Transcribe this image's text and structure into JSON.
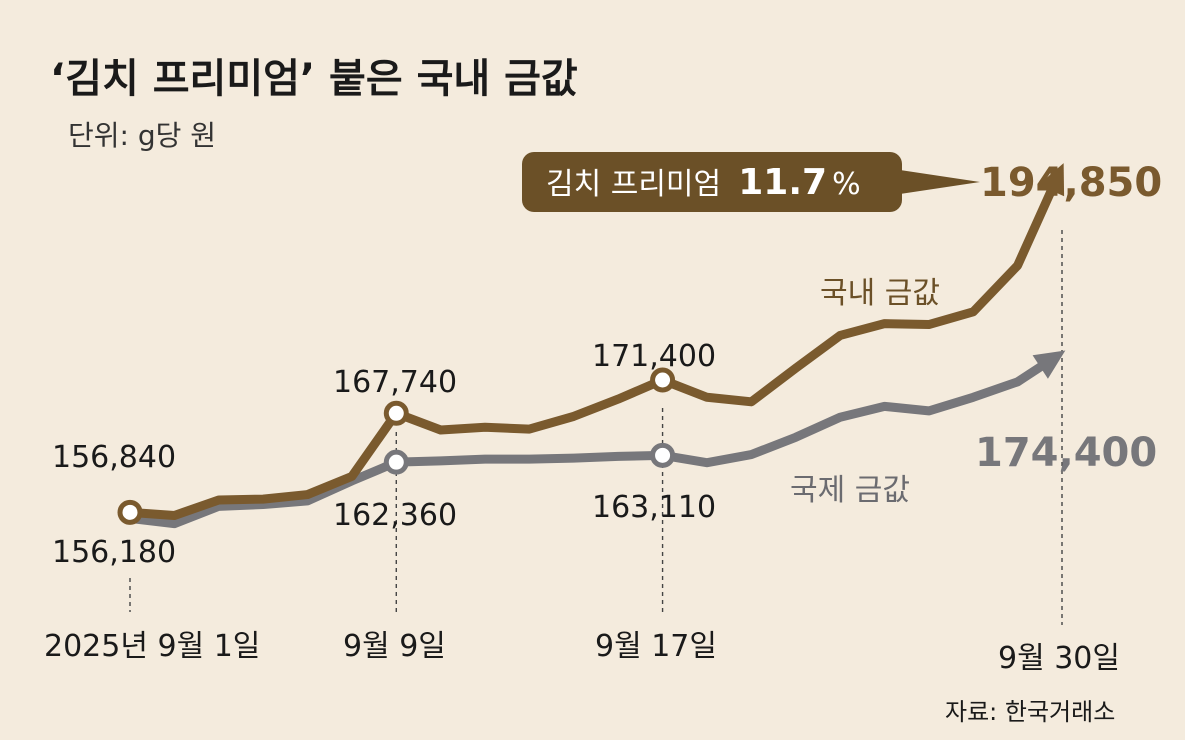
{
  "title": "‘김치 프리미엄’ 붙은 국내 금값",
  "unit": "단위: g당 원",
  "source": "자료: 한국거래소",
  "premium_badge": {
    "label": "김치 프리미엄",
    "value": "11.7",
    "suffix": "%"
  },
  "colors": {
    "domestic": "#7a5a2e",
    "international": "#77777b",
    "badge": "#6b5027",
    "background": "#f4ebdd"
  },
  "chart_data": {
    "type": "line",
    "title": "‘김치 프리미엄’ 붙은 국내 금값",
    "x": [
      "2025-09-01",
      "2025-09-02",
      "2025-09-03",
      "2025-09-04",
      "2025-09-05",
      "2025-09-08",
      "2025-09-09",
      "2025-09-10",
      "2025-09-11",
      "2025-09-12",
      "2025-09-15",
      "2025-09-16",
      "2025-09-17",
      "2025-09-18",
      "2025-09-19",
      "2025-09-22",
      "2025-09-23",
      "2025-09-24",
      "2025-09-25",
      "2025-09-26",
      "2025-09-29",
      "2025-09-30"
    ],
    "series": [
      {
        "name": "국내 금값",
        "values": [
          156840,
          156500,
          158200,
          158300,
          158800,
          160800,
          167740,
          165900,
          166200,
          166000,
          167400,
          169300,
          171400,
          169500,
          169000,
          172700,
          176300,
          177600,
          177500,
          178900,
          184000,
          194850
        ]
      },
      {
        "name": "국제 금값",
        "values": [
          156180,
          155600,
          157500,
          157700,
          158100,
          160300,
          162360,
          162500,
          162700,
          162700,
          162800,
          163000,
          163110,
          162300,
          163200,
          165100,
          167300,
          168500,
          168000,
          169500,
          171200,
          174400
        ]
      }
    ],
    "ylim": [
      145000,
      200000
    ],
    "grid": false,
    "legend": "inline",
    "annotations": {
      "labels": [
        "156,840",
        "156,180",
        "167,740",
        "162,360",
        "171,400",
        "163,110",
        "194,850",
        "174,400"
      ],
      "ticks": [
        "2025년 9월 1일",
        "9월 9일",
        "9월 17일",
        "9월 30일"
      ]
    }
  }
}
